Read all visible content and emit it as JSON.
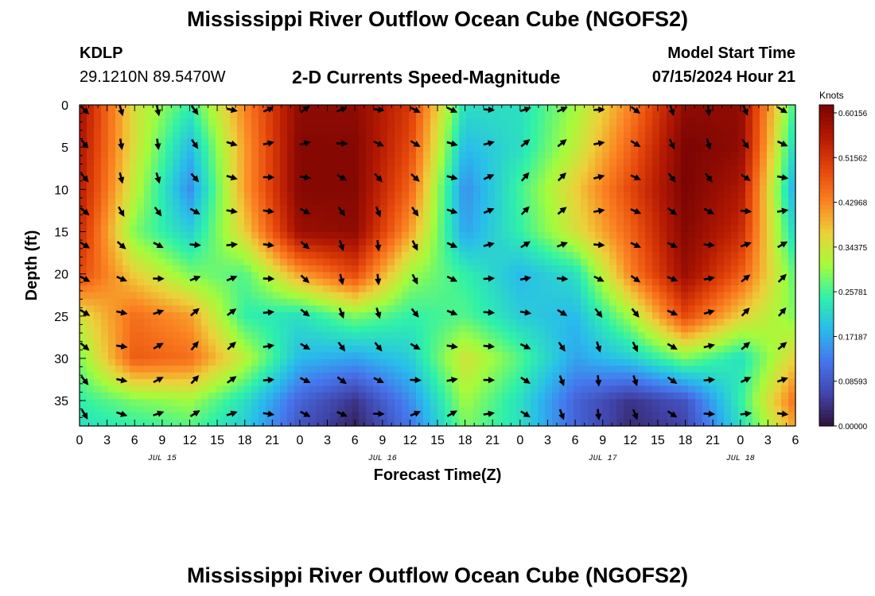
{
  "header": {
    "title": "Mississippi River Outflow Ocean Cube (NGOFS2)",
    "station": "KDLP",
    "coordinates": "29.1210N  89.5470W",
    "subtitle": "2-D Currents Speed-Magnitude",
    "model_start_label": "Model Start Time",
    "model_start_value": "07/15/2024 Hour 21"
  },
  "footer": {
    "title": "Mississippi River Outflow Ocean Cube (NGOFS2)"
  },
  "chart_data": {
    "type": "heatmap",
    "title": "2-D Currents Speed-Magnitude",
    "xlabel": "Forecast Time(Z)",
    "ylabel": "Depth (ft)",
    "x_hours": [
      0,
      6,
      12,
      18,
      24,
      30,
      36,
      42,
      48,
      54,
      60,
      66,
      72,
      78
    ],
    "x_tick_labels": [
      "0",
      "3",
      "6",
      "9",
      "12",
      "15",
      "18",
      "21",
      "0",
      "3",
      "6",
      "9",
      "12",
      "15",
      "18",
      "21",
      "0",
      "3",
      "6",
      "9",
      "12",
      "15",
      "18",
      "21",
      "0",
      "3",
      "6"
    ],
    "date_labels": [
      {
        "text": "JUL 15",
        "hour": 9
      },
      {
        "text": "JUL 16",
        "hour": 33
      },
      {
        "text": "JUL 17",
        "hour": 57
      },
      {
        "text": "JUL 18",
        "hour": 72
      }
    ],
    "xlim_hours": [
      0,
      78
    ],
    "y_tick_labels": [
      "0",
      "5",
      "10",
      "15",
      "20",
      "25",
      "30",
      "35"
    ],
    "y_ticks": [
      0,
      5,
      10,
      15,
      20,
      25,
      30,
      35
    ],
    "ylim": [
      0,
      38
    ],
    "depths": [
      0,
      5,
      10,
      15,
      20,
      25,
      30,
      35,
      38
    ],
    "speed_knots": [
      [
        0.56,
        0.34,
        0.24,
        0.42,
        0.58,
        0.58,
        0.5,
        0.22,
        0.22,
        0.3,
        0.42,
        0.58,
        0.58,
        0.24
      ],
      [
        0.55,
        0.34,
        0.18,
        0.4,
        0.59,
        0.59,
        0.48,
        0.18,
        0.22,
        0.32,
        0.45,
        0.6,
        0.58,
        0.2
      ],
      [
        0.54,
        0.32,
        0.14,
        0.4,
        0.59,
        0.59,
        0.45,
        0.14,
        0.25,
        0.36,
        0.48,
        0.6,
        0.55,
        0.16
      ],
      [
        0.52,
        0.28,
        0.2,
        0.36,
        0.57,
        0.58,
        0.4,
        0.16,
        0.24,
        0.34,
        0.45,
        0.59,
        0.52,
        0.2
      ],
      [
        0.48,
        0.36,
        0.28,
        0.26,
        0.4,
        0.48,
        0.3,
        0.24,
        0.18,
        0.22,
        0.42,
        0.57,
        0.46,
        0.26
      ],
      [
        0.34,
        0.44,
        0.4,
        0.24,
        0.22,
        0.28,
        0.24,
        0.26,
        0.2,
        0.18,
        0.3,
        0.48,
        0.36,
        0.28
      ],
      [
        0.28,
        0.46,
        0.44,
        0.32,
        0.18,
        0.16,
        0.2,
        0.34,
        0.26,
        0.16,
        0.2,
        0.28,
        0.22,
        0.36
      ],
      [
        0.24,
        0.28,
        0.3,
        0.22,
        0.1,
        0.04,
        0.14,
        0.3,
        0.22,
        0.1,
        0.04,
        0.08,
        0.24,
        0.44
      ],
      [
        0.22,
        0.24,
        0.26,
        0.2,
        0.08,
        0.02,
        0.12,
        0.28,
        0.22,
        0.1,
        0.03,
        0.06,
        0.22,
        0.4
      ]
    ],
    "vector_times": [
      0,
      4,
      8,
      12,
      16,
      20,
      24,
      28,
      32,
      36,
      40,
      44,
      48,
      52,
      56,
      60,
      64,
      68,
      72,
      76
    ],
    "vector_depths": [
      0,
      4,
      8,
      12,
      16,
      20,
      24,
      28,
      32,
      36
    ],
    "colorbar": {
      "title": "Knots",
      "tick_labels": [
        "0.60156",
        "0.51562",
        "0.42968",
        "0.34375",
        "0.25781",
        "0.17187",
        "0.08593",
        "0.00000"
      ],
      "range": [
        0,
        0.60156
      ]
    }
  }
}
